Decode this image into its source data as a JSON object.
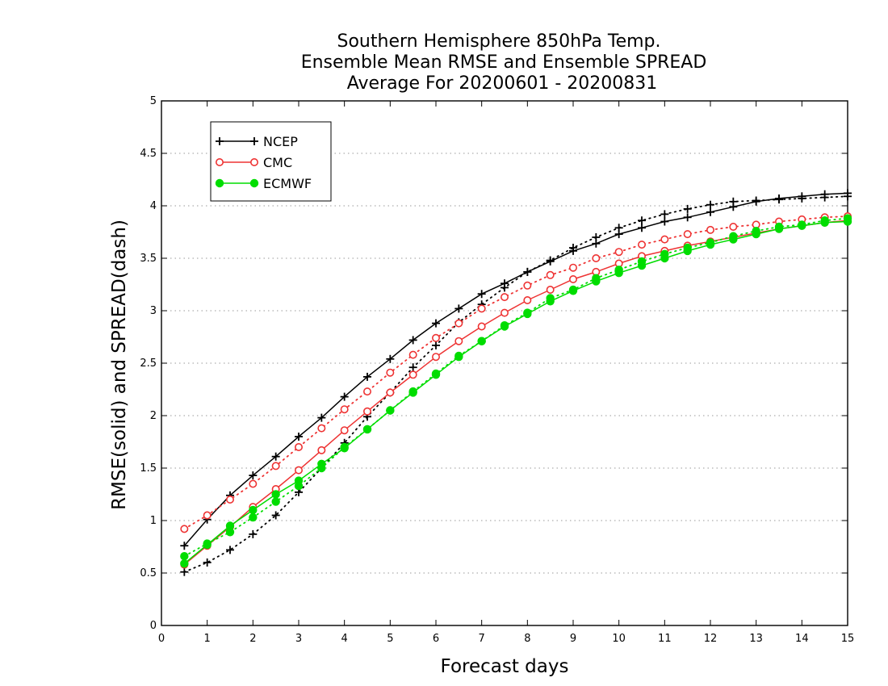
{
  "chart_data": {
    "type": "line",
    "title_lines": [
      "Southern Hemisphere 850hPa Temp.",
      "Ensemble Mean RMSE and Ensemble SPREAD",
      "Average For 20200601 - 20200831"
    ],
    "xlabel": "Forecast days",
    "ylabel": "RMSE(solid) and SPREAD(dash)",
    "xlim": [
      0,
      15
    ],
    "ylim": [
      0,
      5
    ],
    "x_ticks": [
      "0",
      "1",
      "2",
      "3",
      "4",
      "5",
      "6",
      "7",
      "8",
      "9",
      "10",
      "11",
      "12",
      "13",
      "14",
      "15"
    ],
    "y_ticks": [
      "0",
      "0.5",
      "1",
      "1.5",
      "2",
      "2.5",
      "3",
      "3.5",
      "4",
      "4.5",
      "5"
    ],
    "grid": true,
    "legend_position": "top-left",
    "x": [
      0.5,
      1,
      1.5,
      2,
      2.5,
      3,
      3.5,
      4,
      4.5,
      5,
      5.5,
      6,
      6.5,
      7,
      7.5,
      8,
      8.5,
      9,
      9.5,
      10,
      10.5,
      11,
      11.5,
      12,
      12.5,
      13,
      13.5,
      14,
      14.5,
      15
    ],
    "series": [
      {
        "name": "NCEP",
        "color": "#000000",
        "marker": "plus",
        "rmse": [
          0.76,
          1.01,
          1.24,
          1.43,
          1.61,
          1.8,
          1.98,
          2.18,
          2.37,
          2.54,
          2.72,
          2.88,
          3.02,
          3.16,
          3.26,
          3.37,
          3.47,
          3.57,
          3.64,
          3.73,
          3.79,
          3.85,
          3.89,
          3.94,
          3.99,
          4.04,
          4.07,
          4.09,
          4.11,
          4.12
        ],
        "spread": [
          0.51,
          0.6,
          0.72,
          0.87,
          1.05,
          1.27,
          1.5,
          1.74,
          1.99,
          2.22,
          2.46,
          2.67,
          2.89,
          3.06,
          3.22,
          3.37,
          3.48,
          3.6,
          3.7,
          3.79,
          3.86,
          3.92,
          3.97,
          4.01,
          4.04,
          4.05,
          4.06,
          4.07,
          4.08,
          4.09
        ]
      },
      {
        "name": "CMC",
        "color": "#ee3333",
        "marker": "open-circle",
        "rmse": [
          0.58,
          0.76,
          0.94,
          1.13,
          1.3,
          1.48,
          1.67,
          1.86,
          2.04,
          2.22,
          2.39,
          2.56,
          2.71,
          2.85,
          2.98,
          3.1,
          3.2,
          3.3,
          3.37,
          3.45,
          3.52,
          3.57,
          3.62,
          3.66,
          3.7,
          3.74,
          3.78,
          3.81,
          3.84,
          3.86
        ],
        "spread": [
          0.92,
          1.05,
          1.2,
          1.35,
          1.52,
          1.7,
          1.88,
          2.06,
          2.23,
          2.41,
          2.58,
          2.74,
          2.88,
          3.02,
          3.13,
          3.24,
          3.34,
          3.41,
          3.5,
          3.56,
          3.63,
          3.68,
          3.73,
          3.77,
          3.8,
          3.82,
          3.85,
          3.87,
          3.89,
          3.9
        ]
      },
      {
        "name": "ECMWF",
        "color": "#00dd00",
        "marker": "filled-circle",
        "rmse": [
          0.59,
          0.77,
          0.95,
          1.1,
          1.25,
          1.38,
          1.54,
          1.69,
          1.87,
          2.05,
          2.22,
          2.39,
          2.56,
          2.71,
          2.85,
          2.97,
          3.09,
          3.19,
          3.28,
          3.36,
          3.43,
          3.5,
          3.57,
          3.63,
          3.68,
          3.73,
          3.78,
          3.81,
          3.84,
          3.85
        ],
        "spread": [
          0.66,
          0.78,
          0.89,
          1.03,
          1.18,
          1.33,
          1.5,
          1.7,
          1.87,
          2.05,
          2.23,
          2.4,
          2.57,
          2.71,
          2.86,
          2.98,
          3.12,
          3.2,
          3.31,
          3.39,
          3.47,
          3.54,
          3.6,
          3.65,
          3.71,
          3.76,
          3.8,
          3.82,
          3.86,
          3.88
        ]
      }
    ]
  }
}
